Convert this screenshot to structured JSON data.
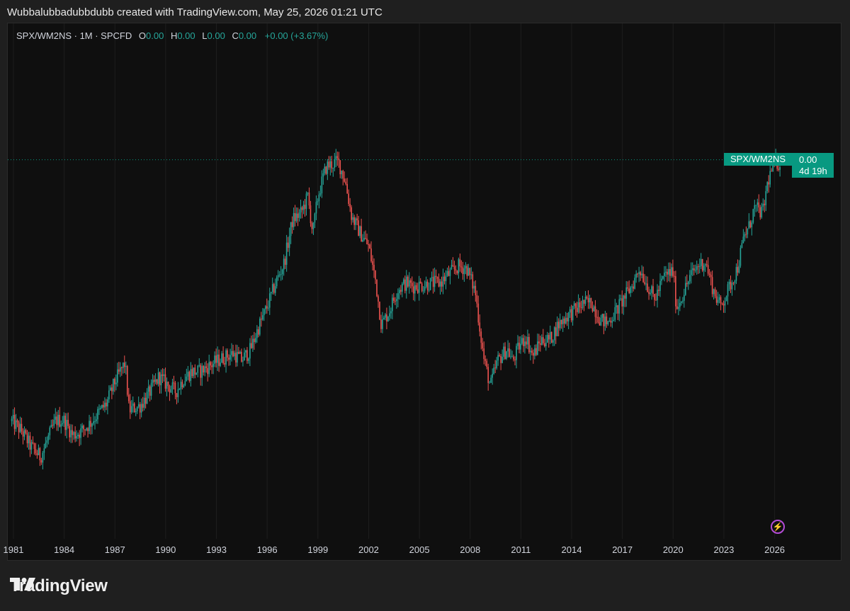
{
  "attribution": "Wubbalubbadubbdubb created with TradingView.com, May 25, 2026 01:21 UTC",
  "legend": {
    "symbol": "SPX/WM2NS · 1M · SPCFD",
    "o_label": "O",
    "o_value": "0.00",
    "h_label": "H",
    "h_value": "0.00",
    "l_label": "L",
    "l_value": "0.00",
    "c_label": "C",
    "c_value": "0.00",
    "change": "+0.00 (+3.67%)"
  },
  "price_label": {
    "symbol": "SPX/WM2NS",
    "value": "0.00",
    "countdown": "4d 19h"
  },
  "logo_text": "TradingView",
  "icons": {
    "bolt": "lightning-icon",
    "logo": "tradingview-logo-icon"
  },
  "colors": {
    "up": "#26a69a",
    "down": "#ef5350",
    "accent": "#089981",
    "bolt": "#b44cd6"
  },
  "chart_data": {
    "type": "candlestick",
    "series_name": "SPX/WM2NS",
    "interval": "1M",
    "x_ticks": [
      "1981",
      "1984",
      "1987",
      "1990",
      "1993",
      "1996",
      "1999",
      "2002",
      "2005",
      "2008",
      "2011",
      "2014",
      "2017",
      "2020",
      "2023",
      "2026"
    ],
    "x_tick_years": [
      1981,
      1984,
      1987,
      1990,
      1993,
      1996,
      1999,
      2002,
      2005,
      2008,
      2011,
      2014,
      2017,
      2020,
      2023,
      2026
    ],
    "x_range": [
      1980.8,
      2030.7
    ],
    "y_range": [
      0.0,
      1.0
    ],
    "y_axis_labels": "hidden",
    "grid": "vertical",
    "last_value_line": true,
    "note": "Relative close levels (0-1 scale, price axis hidden in original)",
    "closes": [
      [
        1980.9,
        0.236
      ],
      [
        1981.5,
        0.206
      ],
      [
        1982.0,
        0.163
      ],
      [
        1982.6,
        0.13
      ],
      [
        1983.0,
        0.179
      ],
      [
        1983.5,
        0.238
      ],
      [
        1984.0,
        0.238
      ],
      [
        1984.5,
        0.194
      ],
      [
        1985.0,
        0.206
      ],
      [
        1985.5,
        0.228
      ],
      [
        1986.0,
        0.258
      ],
      [
        1986.5,
        0.287
      ],
      [
        1987.0,
        0.352
      ],
      [
        1987.6,
        0.408
      ],
      [
        1987.83,
        0.268
      ],
      [
        1988.5,
        0.282
      ],
      [
        1989.0,
        0.317
      ],
      [
        1989.6,
        0.366
      ],
      [
        1990.0,
        0.347
      ],
      [
        1990.6,
        0.322
      ],
      [
        1991.0,
        0.356
      ],
      [
        1991.5,
        0.381
      ],
      [
        1992.0,
        0.381
      ],
      [
        1992.5,
        0.396
      ],
      [
        1993.0,
        0.411
      ],
      [
        1993.5,
        0.425
      ],
      [
        1994.0,
        0.435
      ],
      [
        1994.5,
        0.416
      ],
      [
        1995.0,
        0.445
      ],
      [
        1995.5,
        0.514
      ],
      [
        1996.0,
        0.573
      ],
      [
        1996.5,
        0.642
      ],
      [
        1997.0,
        0.701
      ],
      [
        1997.5,
        0.828
      ],
      [
        1998.0,
        0.848
      ],
      [
        1998.4,
        0.897
      ],
      [
        1998.7,
        0.789
      ],
      [
        1999.0,
        0.897
      ],
      [
        1999.5,
        0.985
      ],
      [
        2000.2,
        1.0
      ],
      [
        2000.6,
        0.946
      ],
      [
        2001.0,
        0.838
      ],
      [
        2001.5,
        0.789
      ],
      [
        2002.0,
        0.75
      ],
      [
        2002.4,
        0.652
      ],
      [
        2002.75,
        0.519
      ],
      [
        2003.2,
        0.558
      ],
      [
        2003.7,
        0.622
      ],
      [
        2004.2,
        0.642
      ],
      [
        2004.7,
        0.632
      ],
      [
        2005.2,
        0.637
      ],
      [
        2005.7,
        0.642
      ],
      [
        2006.2,
        0.642
      ],
      [
        2006.7,
        0.666
      ],
      [
        2007.3,
        0.691
      ],
      [
        2007.8,
        0.686
      ],
      [
        2008.3,
        0.617
      ],
      [
        2008.8,
        0.421
      ],
      [
        2009.2,
        0.338
      ],
      [
        2009.6,
        0.411
      ],
      [
        2010.2,
        0.45
      ],
      [
        2010.5,
        0.411
      ],
      [
        2010.9,
        0.456
      ],
      [
        2011.3,
        0.484
      ],
      [
        2011.7,
        0.426
      ],
      [
        2012.2,
        0.475
      ],
      [
        2012.7,
        0.475
      ],
      [
        2013.2,
        0.519
      ],
      [
        2013.7,
        0.544
      ],
      [
        2014.2,
        0.563
      ],
      [
        2014.7,
        0.583
      ],
      [
        2015.2,
        0.583
      ],
      [
        2015.7,
        0.534
      ],
      [
        2016.1,
        0.524
      ],
      [
        2016.6,
        0.558
      ],
      [
        2017.1,
        0.598
      ],
      [
        2017.6,
        0.637
      ],
      [
        2018.0,
        0.686
      ],
      [
        2018.9,
        0.593
      ],
      [
        2019.5,
        0.666
      ],
      [
        2020.0,
        0.676
      ],
      [
        2020.2,
        0.568
      ],
      [
        2020.6,
        0.612
      ],
      [
        2021.0,
        0.661
      ],
      [
        2021.5,
        0.696
      ],
      [
        2021.9,
        0.705
      ],
      [
        2022.4,
        0.617
      ],
      [
        2022.8,
        0.573
      ],
      [
        2023.3,
        0.627
      ],
      [
        2023.8,
        0.686
      ],
      [
        2024.2,
        0.779
      ],
      [
        2024.5,
        0.809
      ],
      [
        2024.8,
        0.863
      ],
      [
        2025.3,
        0.848
      ],
      [
        2025.6,
        0.942
      ],
      [
        2025.9,
        0.985
      ],
      [
        2026.1,
        0.995
      ]
    ]
  }
}
